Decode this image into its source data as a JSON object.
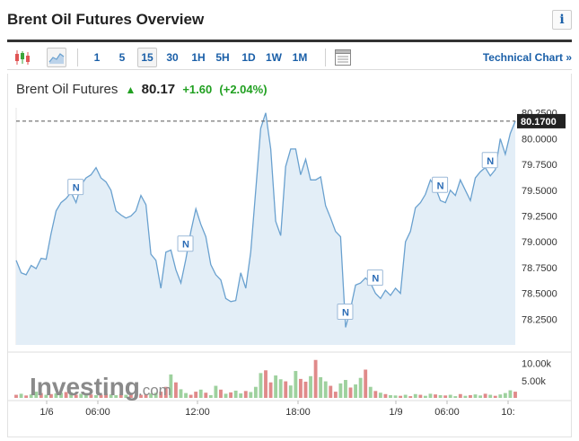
{
  "header": {
    "title": "Brent Oil Futures Overview",
    "info_icon": "info-icon"
  },
  "toolbar": {
    "chart_type_icons": [
      "candlestick-icon",
      "area-chart-icon"
    ],
    "intervals": [
      "1",
      "5",
      "15",
      "30",
      "1H",
      "5H",
      "1D",
      "1W",
      "1M"
    ],
    "active_interval": "15",
    "layout_icon": "chart-layout-icon",
    "technical_chart_label": "Technical Chart »"
  },
  "quote": {
    "name": "Brent Oil Futures",
    "last": "80.17",
    "change": "+1.60",
    "change_pct": "(+2.04%)",
    "direction_icon": "up-arrow-icon",
    "colors": {
      "up": "#21a021",
      "line": "#6aa1cf",
      "area": "#e3eef7",
      "price_box": "#222222"
    }
  },
  "chart_data": {
    "type": "area",
    "price_label": "80.1700",
    "price": 80.17,
    "ylim": [
      78.0,
      80.3
    ],
    "y_ticks": [
      "80.2500",
      "80.0000",
      "79.7500",
      "79.5000",
      "79.2500",
      "79.0000",
      "78.7500",
      "78.5000",
      "78.2500"
    ],
    "y_tick_values": [
      80.25,
      80.0,
      79.75,
      79.5,
      79.25,
      79.0,
      78.75,
      78.5,
      78.25
    ],
    "x_labels": [
      "1/6",
      "06:00",
      "12:00",
      "18:00",
      "1/9",
      "06:00",
      "10:"
    ],
    "volume_ticks": [
      "10.00k",
      "5.00k"
    ],
    "volume_tick_values": [
      10000,
      5000
    ],
    "volume_max": 12500,
    "news_markers": [
      "N",
      "N",
      "N",
      "N",
      "N",
      "N"
    ],
    "news_marker_index": [
      12,
      34,
      66,
      72,
      85,
      95
    ],
    "series": [
      {
        "values": [
          78.82,
          78.7,
          78.68,
          78.77,
          78.74,
          78.84,
          78.83,
          79.08,
          79.3,
          79.38,
          79.42,
          79.48,
          79.38,
          79.55,
          79.62,
          79.65,
          79.72,
          79.62,
          79.58,
          79.5,
          79.3,
          79.26,
          79.23,
          79.25,
          79.3,
          79.45,
          79.36,
          78.88,
          78.82,
          78.55,
          78.9,
          78.92,
          78.73,
          78.6,
          78.83,
          79.1,
          79.32,
          79.17,
          79.05,
          78.78,
          78.68,
          78.63,
          78.45,
          78.42,
          78.43,
          78.7,
          78.55,
          78.9,
          79.5,
          80.1,
          80.25,
          79.9,
          79.2,
          79.06,
          79.73,
          79.9,
          79.9,
          79.65,
          79.8,
          79.6,
          79.6,
          79.63,
          79.35,
          79.23,
          79.1,
          79.05,
          78.17,
          78.35,
          78.58,
          78.6,
          78.65,
          78.6,
          78.5,
          78.45,
          78.53,
          78.48,
          78.55,
          78.5,
          79.0,
          79.1,
          79.33,
          79.38,
          79.46,
          79.6,
          79.53,
          79.4,
          79.38,
          79.5,
          79.45,
          79.6,
          79.5,
          79.4,
          79.62,
          79.68,
          79.72,
          79.64,
          79.7,
          80.0,
          79.85,
          80.05,
          80.17
        ]
      }
    ],
    "volume": [
      900,
      1200,
      700,
      1000,
      1800,
      1400,
      900,
      1100,
      1300,
      1500,
      1700,
      1600,
      900,
      1200,
      1400,
      1000,
      800,
      900,
      1200,
      1000,
      800,
      1100,
      900,
      1000,
      700,
      900,
      1100,
      1300,
      1500,
      1800,
      3200,
      6800,
      4500,
      2500,
      1400,
      900,
      1800,
      2400,
      1500,
      800,
      3500,
      2400,
      1200,
      1600,
      2100,
      1300,
      2000,
      1700,
      3200,
      7200,
      8000,
      4500,
      6500,
      5400,
      4800,
      3600,
      7800,
      5500,
      4700,
      6300,
      11000,
      6000,
      4800,
      3500,
      1800,
      4200,
      5200,
      3000,
      3900,
      5800,
      8200,
      3200,
      2000,
      1500,
      1100,
      800,
      700,
      600,
      900,
      500,
      1100,
      900,
      600,
      1200,
      1000,
      800,
      700,
      900,
      500,
      1100,
      600,
      800,
      1000,
      700,
      1200,
      900,
      600,
      1000,
      1400,
      2200,
      1800
    ],
    "volume_up": [
      false,
      true,
      false,
      true,
      true,
      false,
      true,
      false,
      true,
      true,
      false,
      true,
      false,
      true,
      true,
      false,
      true,
      false,
      false,
      true,
      true,
      false,
      true,
      false,
      true,
      false,
      false,
      true,
      true,
      false,
      false,
      true,
      false,
      true,
      true,
      false,
      false,
      true,
      false,
      true,
      true,
      false,
      true,
      false,
      true,
      true,
      false,
      true,
      true,
      true,
      false,
      false,
      true,
      true,
      false,
      true,
      true,
      false,
      false,
      true,
      false,
      true,
      true,
      false,
      false,
      true,
      true,
      false,
      true,
      true,
      false,
      true,
      false,
      true,
      false,
      true,
      true,
      false,
      true,
      false,
      true,
      false,
      true,
      true,
      false,
      true,
      false,
      true,
      true,
      false,
      true,
      false,
      true,
      true,
      false,
      true,
      false,
      true,
      true,
      true,
      false
    ]
  },
  "watermark": {
    "text": "Investing",
    "domain": ".com"
  }
}
